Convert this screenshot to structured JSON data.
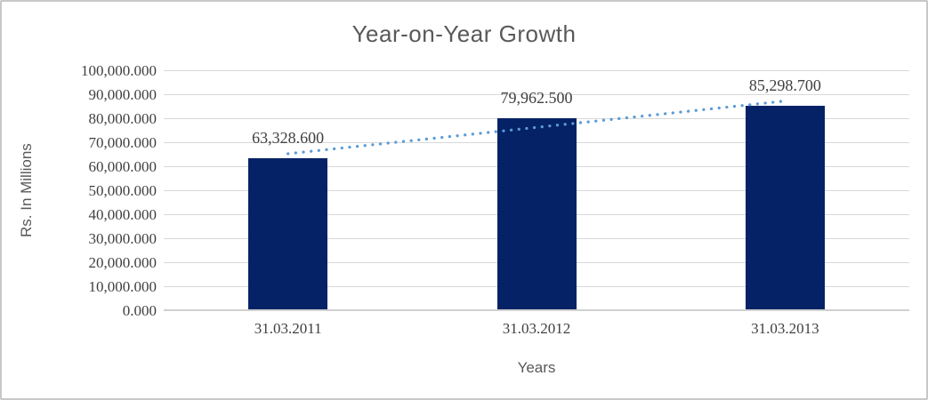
{
  "window": {
    "background": "#ffffff",
    "frame_border_color": "#c7c7c7"
  },
  "chart_data": {
    "type": "bar",
    "title": "Year-on-Year Growth",
    "xlabel": "Years",
    "ylabel": "Rs. In Millions",
    "categories": [
      "31.03.2011",
      "31.03.2012",
      "31.03.2013"
    ],
    "values": [
      63328.6,
      79962.5,
      85298.7
    ],
    "data_labels": [
      "63,328.600",
      "79,962.500",
      "85,298.700"
    ],
    "ylim": [
      0,
      100000
    ],
    "ytick_step": 10000,
    "yticks": [
      "100,000.000",
      "90,000.000",
      "80,000.000",
      "70,000.000",
      "60,000.000",
      "50,000.000",
      "40,000.000",
      "30,000.000",
      "20,000.000",
      "10,000.000",
      "0.000"
    ],
    "grid": true,
    "legend_position": "none",
    "bar_color": "#052266",
    "gridline_color": "#d9d9d9",
    "axisline_color": "#d0d0d0",
    "title_color": "#595959",
    "tick_color": "#404040",
    "trendline": {
      "type": "linear",
      "style": "dotted",
      "color": "#5b9bd5",
      "start_value": 65211.6,
      "end_value": 87181.7
    }
  }
}
